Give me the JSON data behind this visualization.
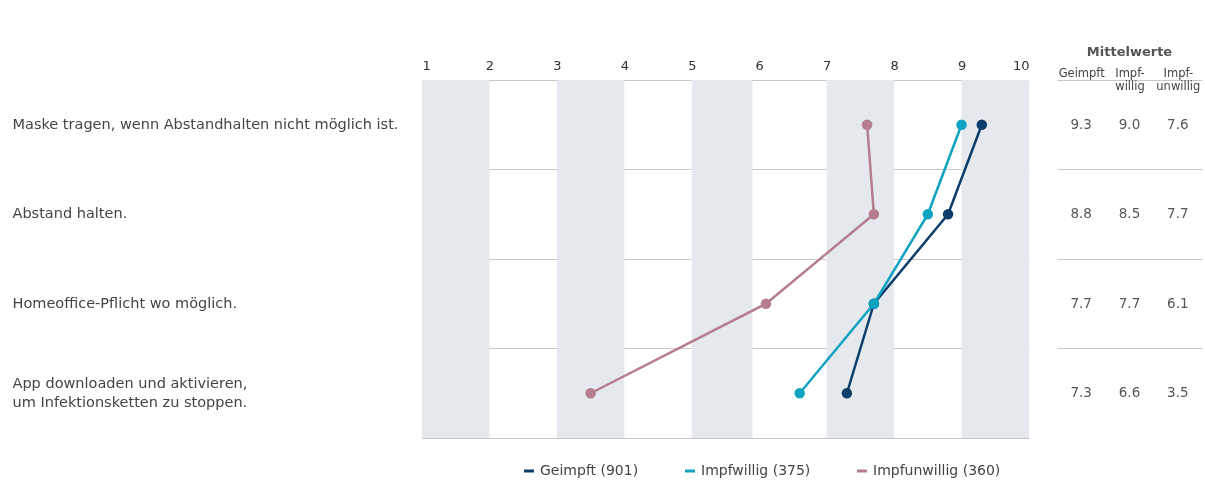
{
  "chart_data": {
    "type": "line",
    "orientation": "horizontal",
    "categories": [
      "Maske tragen, wenn Abstandhalten nicht möglich ist.",
      "Abstand halten.",
      "Homeoffice-Pflicht wo möglich.",
      "App downloaden und aktivieren, um Infektionsketten zu stoppen."
    ],
    "series": [
      {
        "name": "Geimpft (901)",
        "color": "#0d3d6b",
        "values": [
          9.3,
          8.8,
          7.7,
          7.3
        ],
        "value_labels": [
          "9.3",
          "8.8",
          "7.7",
          "7.3"
        ]
      },
      {
        "name": "Impfwillig (375)",
        "color": "#0fa3c2",
        "values": [
          9.0,
          8.5,
          7.7,
          6.6
        ],
        "value_labels": [
          "9.0",
          "8.5",
          "7.7",
          "6.6"
        ]
      },
      {
        "name": "Impfunwillig (360)",
        "color": "#b57d8e",
        "values": [
          7.6,
          7.7,
          6.1,
          3.5
        ],
        "value_labels": [
          "7.6",
          "7.7",
          "6.1",
          "3.5"
        ]
      }
    ],
    "xlim": [
      1,
      10
    ],
    "xticks": [
      1,
      2,
      3,
      4,
      5,
      6,
      7,
      8,
      9,
      10
    ],
    "bands": [
      {
        "axis": "x",
        "from": 1,
        "to": 2,
        "color": "#e5e9ee"
      },
      {
        "axis": "x",
        "from": 3,
        "to": 4,
        "color": "#e5e9ee"
      },
      {
        "axis": "x",
        "from": 5,
        "to": 5.9,
        "color": "#e5e9ee"
      },
      {
        "axis": "x",
        "from": 7,
        "to": 8,
        "color": "#e5e9ee"
      },
      {
        "axis": "x",
        "from": 9,
        "to": 10,
        "color": "#e5e9ee"
      }
    ],
    "marker": "circle",
    "grid": "y",
    "legend": "bottom",
    "annotations": [
      "Mittelwerte",
      "Geimpft",
      "Impf-willig",
      "Impf-unwillig"
    ]
  }
}
